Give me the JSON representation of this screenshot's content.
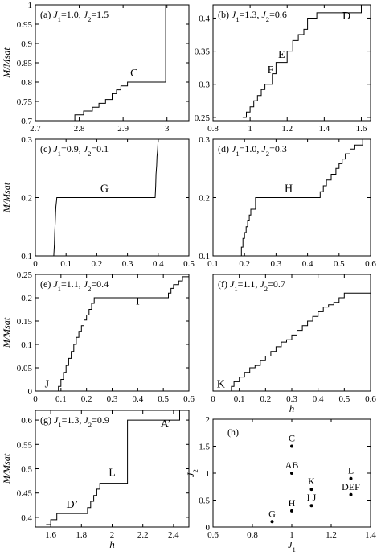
{
  "chart_data": [
    {
      "panel": "a",
      "type": "line",
      "title_prefix": "(a)",
      "j1": "1.0",
      "j2": "1.5",
      "xlim": [
        2.7,
        3.05
      ],
      "ylim": [
        0.7,
        1.0
      ],
      "xticks": [
        "2.7",
        "2.8",
        "2.9",
        "3"
      ],
      "xtick_values": [
        2.7,
        2.8,
        2.9,
        3.0
      ],
      "yticks": [
        "0.7",
        "0.75",
        "0.8",
        "0.85",
        "0.9",
        "0.95",
        "1"
      ],
      "ytick_values": [
        0.7,
        0.75,
        0.8,
        0.85,
        0.9,
        0.95,
        1.0
      ],
      "ylabel": "M/Msat",
      "xlabel": "",
      "annotations": [
        {
          "text": "C",
          "x": 2.925,
          "y": 0.815
        }
      ],
      "series": [
        {
          "x": [
            2.77,
            2.79,
            2.79,
            2.81,
            2.81,
            2.83,
            2.83,
            2.845,
            2.845,
            2.86,
            2.86,
            2.875,
            2.875,
            2.885,
            2.885,
            2.895,
            2.895,
            2.91,
            2.91,
            2.997,
            2.997,
            3.005
          ],
          "y": [
            0.7,
            0.7,
            0.715,
            0.715,
            0.725,
            0.725,
            0.735,
            0.735,
            0.745,
            0.745,
            0.755,
            0.755,
            0.77,
            0.77,
            0.78,
            0.78,
            0.79,
            0.79,
            0.8,
            0.8,
            1.0,
            1.0
          ]
        }
      ]
    },
    {
      "panel": "b",
      "type": "line",
      "title_prefix": "(b)",
      "j1": "1.3",
      "j2": "0.6",
      "xlim": [
        0.8,
        1.65
      ],
      "ylim": [
        0.245,
        0.42
      ],
      "xticks": [
        "0.8",
        "1",
        "1.2",
        "1.4",
        "1.6"
      ],
      "xtick_values": [
        0.8,
        1.0,
        1.2,
        1.4,
        1.6
      ],
      "yticks": [
        "0.25",
        "0.3",
        "0.35",
        "0.4"
      ],
      "ytick_values": [
        0.25,
        0.3,
        0.35,
        0.4
      ],
      "ylabel": "",
      "xlabel": "",
      "annotations": [
        {
          "text": "D",
          "x": 1.52,
          "y": 0.398
        },
        {
          "text": "E",
          "x": 1.17,
          "y": 0.34
        },
        {
          "text": "F",
          "x": 1.11,
          "y": 0.317
        }
      ],
      "series": [
        {
          "x": [
            0.96,
            0.98,
            0.98,
            1.0,
            1.0,
            1.02,
            1.02,
            1.04,
            1.04,
            1.06,
            1.06,
            1.08,
            1.08,
            1.12,
            1.12,
            1.14,
            1.14,
            1.2,
            1.2,
            1.23,
            1.23,
            1.26,
            1.26,
            1.29,
            1.29,
            1.31,
            1.31,
            1.36,
            1.36,
            1.6,
            1.6,
            1.62
          ],
          "y": [
            0.25,
            0.25,
            0.258,
            0.258,
            0.266,
            0.266,
            0.275,
            0.275,
            0.283,
            0.283,
            0.292,
            0.292,
            0.3,
            0.3,
            0.316,
            0.316,
            0.333,
            0.333,
            0.35,
            0.35,
            0.366,
            0.366,
            0.375,
            0.375,
            0.383,
            0.383,
            0.4,
            0.4,
            0.408,
            0.408,
            0.42,
            0.42
          ]
        }
      ]
    },
    {
      "panel": "c",
      "type": "line",
      "title_prefix": "(c)",
      "j1": "0.9",
      "j2": "0.1",
      "xlim": [
        0,
        0.5
      ],
      "ylim": [
        0.1,
        0.3
      ],
      "xticks": [
        "0",
        "0.1",
        "0.2",
        "0.3",
        "0.4",
        "0.5"
      ],
      "xtick_values": [
        0,
        0.1,
        0.2,
        0.3,
        0.4,
        0.5
      ],
      "yticks": [
        "0.1",
        "0.2",
        "0.3"
      ],
      "ytick_values": [
        0.1,
        0.2,
        0.3
      ],
      "ylabel": "M/Msat",
      "xlabel": "",
      "annotations": [
        {
          "text": "G",
          "x": 0.225,
          "y": 0.21
        }
      ],
      "series": [
        {
          "x": [
            0.06,
            0.062,
            0.063,
            0.065,
            0.066,
            0.067,
            0.069,
            0.07,
            0.39,
            0.392,
            0.393,
            0.395,
            0.396,
            0.398,
            0.399,
            0.4
          ],
          "y": [
            0.1,
            0.12,
            0.14,
            0.16,
            0.175,
            0.185,
            0.195,
            0.2,
            0.2,
            0.22,
            0.24,
            0.255,
            0.27,
            0.28,
            0.29,
            0.3
          ]
        }
      ]
    },
    {
      "panel": "d",
      "type": "line",
      "title_prefix": "(d)",
      "j1": "1.0",
      "j2": "0.3",
      "xlim": [
        0.1,
        0.6
      ],
      "ylim": [
        0.1,
        0.3
      ],
      "xticks": [
        "0.1",
        "0.2",
        "0.3",
        "0.4",
        "0.5",
        "0.6"
      ],
      "xtick_values": [
        0.1,
        0.2,
        0.3,
        0.4,
        0.5,
        0.6
      ],
      "yticks": [
        "0.1",
        "0.2",
        "0.3"
      ],
      "ytick_values": [
        0.1,
        0.2,
        0.3
      ],
      "ylabel": "",
      "xlabel": "",
      "annotations": [
        {
          "text": "H",
          "x": 0.34,
          "y": 0.21
        }
      ],
      "series": [
        {
          "x": [
            0.185,
            0.19,
            0.19,
            0.195,
            0.195,
            0.2,
            0.2,
            0.205,
            0.205,
            0.21,
            0.21,
            0.215,
            0.215,
            0.22,
            0.22,
            0.235,
            0.235,
            0.44,
            0.44,
            0.45,
            0.45,
            0.46,
            0.46,
            0.475,
            0.475,
            0.49,
            0.49,
            0.5,
            0.5,
            0.51,
            0.51,
            0.52,
            0.52,
            0.535,
            0.535,
            0.55,
            0.55,
            0.575,
            0.575,
            0.6
          ],
          "y": [
            0.1,
            0.1,
            0.115,
            0.115,
            0.13,
            0.13,
            0.14,
            0.14,
            0.15,
            0.15,
            0.16,
            0.16,
            0.17,
            0.17,
            0.18,
            0.18,
            0.2,
            0.2,
            0.21,
            0.21,
            0.22,
            0.22,
            0.23,
            0.23,
            0.24,
            0.24,
            0.25,
            0.25,
            0.258,
            0.258,
            0.266,
            0.266,
            0.275,
            0.275,
            0.283,
            0.283,
            0.29,
            0.29,
            0.3,
            0.3
          ]
        }
      ]
    },
    {
      "panel": "e",
      "type": "line",
      "title_prefix": "(e)",
      "j1": "1.1",
      "j2": "0.4",
      "xlim": [
        0,
        0.6
      ],
      "ylim": [
        0,
        0.25
      ],
      "xticks": [
        "0",
        "0.1",
        "0.2",
        "0.3",
        "0.4",
        "0.5",
        "0.6"
      ],
      "xtick_values": [
        0,
        0.1,
        0.2,
        0.3,
        0.4,
        0.5,
        0.6
      ],
      "yticks": [
        "0",
        "0.05",
        "0.1",
        "0.15",
        "0.2",
        "0.25"
      ],
      "ytick_values": [
        0,
        0.05,
        0.1,
        0.15,
        0.2,
        0.25
      ],
      "ylabel": "M/Msat",
      "xlabel": "",
      "annotations": [
        {
          "text": "I",
          "x": 0.4,
          "y": 0.185
        },
        {
          "text": "J",
          "x": 0.045,
          "y": 0.008
        }
      ],
      "series": [
        {
          "x": [
            0.08,
            0.09,
            0.09,
            0.1,
            0.1,
            0.11,
            0.11,
            0.12,
            0.12,
            0.13,
            0.13,
            0.14,
            0.14,
            0.15,
            0.15,
            0.16,
            0.16,
            0.17,
            0.17,
            0.18,
            0.18,
            0.19,
            0.19,
            0.2,
            0.2,
            0.21,
            0.21,
            0.22,
            0.22,
            0.23,
            0.23,
            0.52,
            0.52,
            0.53,
            0.53,
            0.54,
            0.54,
            0.56,
            0.56,
            0.575,
            0.575,
            0.6
          ],
          "y": [
            0.0,
            0.0,
            0.01,
            0.01,
            0.025,
            0.025,
            0.04,
            0.04,
            0.055,
            0.055,
            0.07,
            0.07,
            0.085,
            0.085,
            0.1,
            0.1,
            0.115,
            0.115,
            0.128,
            0.128,
            0.14,
            0.14,
            0.152,
            0.152,
            0.163,
            0.163,
            0.175,
            0.175,
            0.188,
            0.188,
            0.2,
            0.2,
            0.21,
            0.21,
            0.22,
            0.22,
            0.228,
            0.228,
            0.236,
            0.236,
            0.245,
            0.245
          ]
        }
      ]
    },
    {
      "panel": "f",
      "type": "line",
      "title_prefix": "(f)",
      "j1": "1.1",
      "j2": "0.7",
      "xlim": [
        0,
        0.6
      ],
      "ylim": [
        0,
        0.25
      ],
      "xticks": [
        "0",
        "0.1",
        "0.2",
        "0.3",
        "0.4",
        "0.5",
        "0.6"
      ],
      "xtick_values": [
        0,
        0.1,
        0.2,
        0.3,
        0.4,
        0.5,
        0.6
      ],
      "yticks": [],
      "ytick_values": [],
      "ylabel": "",
      "xlabel": "h",
      "annotations": [
        {
          "text": "K",
          "x": 0.03,
          "y": 0.008
        }
      ],
      "series": [
        {
          "x": [
            0.06,
            0.07,
            0.07,
            0.08,
            0.08,
            0.1,
            0.1,
            0.12,
            0.12,
            0.14,
            0.14,
            0.16,
            0.16,
            0.18,
            0.18,
            0.2,
            0.2,
            0.22,
            0.22,
            0.24,
            0.24,
            0.26,
            0.26,
            0.28,
            0.28,
            0.3,
            0.3,
            0.32,
            0.32,
            0.34,
            0.34,
            0.36,
            0.36,
            0.38,
            0.38,
            0.4,
            0.4,
            0.42,
            0.42,
            0.44,
            0.44,
            0.46,
            0.46,
            0.48,
            0.48,
            0.5,
            0.5,
            0.6,
            0.6
          ],
          "y": [
            0.0,
            0.0,
            0.01,
            0.01,
            0.02,
            0.02,
            0.03,
            0.03,
            0.04,
            0.04,
            0.05,
            0.05,
            0.055,
            0.055,
            0.065,
            0.065,
            0.075,
            0.075,
            0.085,
            0.085,
            0.095,
            0.095,
            0.105,
            0.105,
            0.11,
            0.11,
            0.12,
            0.12,
            0.13,
            0.13,
            0.14,
            0.14,
            0.15,
            0.15,
            0.16,
            0.16,
            0.17,
            0.17,
            0.18,
            0.18,
            0.185,
            0.185,
            0.19,
            0.19,
            0.2,
            0.2,
            0.21,
            0.21,
            0.22
          ]
        }
      ]
    },
    {
      "panel": "g",
      "type": "line",
      "title_prefix": "(g)",
      "j1": "1.3",
      "j2": "0.9",
      "xlim": [
        1.5,
        2.5
      ],
      "ylim": [
        0.38,
        0.62
      ],
      "xticks": [
        "1.6",
        "1.8",
        "2",
        "2.2",
        "2.4"
      ],
      "xtick_values": [
        1.6,
        1.8,
        2.0,
        2.2,
        2.4
      ],
      "yticks": [
        "0.4",
        "0.45",
        "0.5",
        "0.55",
        "0.6"
      ],
      "ytick_values": [
        0.4,
        0.45,
        0.5,
        0.55,
        0.6
      ],
      "ylabel": "M/Msat",
      "xlabel": "h",
      "annotations": [
        {
          "text": "A’",
          "x": 2.35,
          "y": 0.585
        },
        {
          "text": "L",
          "x": 2.0,
          "y": 0.485
        },
        {
          "text": "D’",
          "x": 1.74,
          "y": 0.42
        }
      ],
      "series": [
        {
          "x": [
            1.57,
            1.6,
            1.6,
            1.64,
            1.64,
            1.84,
            1.84,
            1.86,
            1.86,
            1.88,
            1.88,
            1.9,
            1.9,
            1.92,
            1.92,
            2.1,
            2.1,
            2.44,
            2.44,
            2.47
          ],
          "y": [
            0.385,
            0.385,
            0.395,
            0.395,
            0.408,
            0.408,
            0.42,
            0.42,
            0.433,
            0.433,
            0.445,
            0.445,
            0.458,
            0.458,
            0.47,
            0.47,
            0.6,
            0.6,
            0.62,
            0.62
          ]
        }
      ]
    },
    {
      "panel": "h",
      "type": "scatter",
      "title_prefix": "(h)",
      "xlim": [
        0.6,
        1.4
      ],
      "ylim": [
        0,
        2
      ],
      "xticks": [
        "0.6",
        "0.8",
        "1",
        "1.2",
        "1.4"
      ],
      "xtick_values": [
        0.6,
        0.8,
        1.0,
        1.2,
        1.4
      ],
      "yticks": [
        "0",
        "0.5",
        "1",
        "1.5",
        "2"
      ],
      "ytick_values": [
        0,
        0.5,
        1.0,
        1.5,
        2.0
      ],
      "ylabel": "J2",
      "xlabel": "J1",
      "points": [
        {
          "label": "C",
          "x": 1.0,
          "y": 1.5
        },
        {
          "label": "AB",
          "x": 1.0,
          "y": 1.0
        },
        {
          "label": "H",
          "x": 1.0,
          "y": 0.3
        },
        {
          "label": "G",
          "x": 0.9,
          "y": 0.1
        },
        {
          "label": "K",
          "x": 1.1,
          "y": 0.7
        },
        {
          "label": "I J",
          "x": 1.1,
          "y": 0.4
        },
        {
          "label": "L",
          "x": 1.3,
          "y": 0.9
        },
        {
          "label": "DEF",
          "x": 1.3,
          "y": 0.6
        }
      ]
    }
  ]
}
